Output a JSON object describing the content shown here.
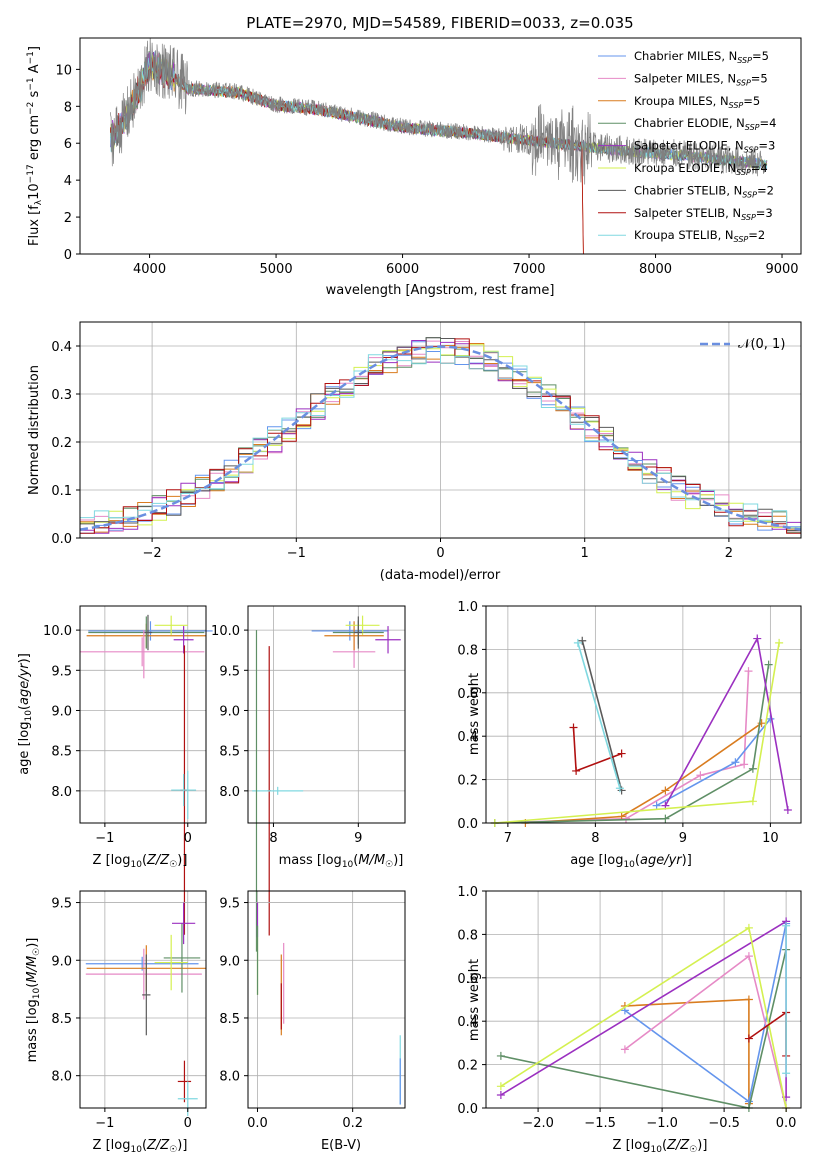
{
  "title": "PLATE=2970, MJD=54589, FIBERID=0033, z=0.035",
  "models": [
    {
      "name": "Chabrier MILES",
      "n": "5",
      "color": "#6495ed"
    },
    {
      "name": "Salpeter MILES",
      "n": "5",
      "color": "#e68ac6"
    },
    {
      "name": "Kroupa MILES",
      "n": "5",
      "color": "#d97c1f"
    },
    {
      "name": "Chabrier ELODIE",
      "n": "4",
      "color": "#5f8f66"
    },
    {
      "name": "Salpeter ELODIE",
      "n": "3",
      "color": "#9b30c0"
    },
    {
      "name": "Kroupa ELODIE",
      "n": "4",
      "color": "#d4f050"
    },
    {
      "name": "Chabrier STELIB",
      "n": "2",
      "color": "#5a5a5a"
    },
    {
      "name": "Salpeter STELIB",
      "n": "3",
      "color": "#b01010"
    },
    {
      "name": "Kroupa STELIB",
      "n": "2",
      "color": "#80d8e0"
    }
  ],
  "legend_prefix": "N",
  "legend_sub": "SSP",
  "chart_data": [
    {
      "id": "spectrum",
      "type": "line",
      "xlabel": "wavelength [Angstrom, rest frame]",
      "ylabel": "Flux [f_λ 10^-17 erg cm^-2 s^-1 A^-1]",
      "xlim": [
        3450,
        9150
      ],
      "ylim": [
        0,
        11.7
      ],
      "xticks": [
        "4000",
        "5000",
        "6000",
        "7000",
        "8000",
        "9000"
      ],
      "yticks": [
        "0",
        "2",
        "4",
        "6",
        "8",
        "10"
      ],
      "data_color": "#808080",
      "spectrum_anchor_x": [
        3700,
        3800,
        3900,
        4000,
        4100,
        4200,
        4300,
        4500,
        4700,
        5000,
        5300,
        5600,
        6000,
        6500,
        7000,
        7400,
        7800,
        8200,
        8600,
        8850
      ],
      "spectrum_anchor_y": [
        6.3,
        7.2,
        8.6,
        10.3,
        10.0,
        9.6,
        9.0,
        8.9,
        8.8,
        8.1,
        7.9,
        7.5,
        6.9,
        6.6,
        6.2,
        5.9,
        5.6,
        5.4,
        5.1,
        4.9
      ],
      "legend": "top-right",
      "grid": false
    },
    {
      "id": "residuals",
      "type": "bar",
      "xlabel": "(data-model)/error",
      "ylabel": "Normed distribution",
      "xlim": [
        -2.5,
        2.5
      ],
      "ylim": [
        0,
        0.45
      ],
      "xticks": [
        "−2",
        "−1",
        "0",
        "1",
        "2"
      ],
      "yticks": [
        "0.0",
        "0.1",
        "0.2",
        "0.3",
        "0.4"
      ],
      "curve_label": "𝒩(0, 1)",
      "curve_color": "#6a8fe0",
      "legend": "top-right",
      "grid": true
    },
    {
      "id": "age-vs-Z",
      "type": "scatter",
      "xlabel": "Z [log10(Z/Z☉)]",
      "ylabel": "age  [log10(age/yr)]",
      "xlim": [
        -1.3,
        0.22
      ],
      "ylim": [
        7.6,
        10.3
      ],
      "xticks": [
        "−1",
        "0"
      ],
      "yticks": [
        "8.0",
        "8.5",
        "9.0",
        "9.5",
        "10.0"
      ],
      "grid": true
    },
    {
      "id": "age-vs-mass",
      "type": "scatter",
      "xlabel": "mass [log10(M/M☉)]",
      "ylabel": "",
      "xlim": [
        7.7,
        9.55
      ],
      "ylim": [
        7.6,
        10.3
      ],
      "xticks": [
        "8",
        "9"
      ],
      "yticks": [
        "8.0",
        "8.5",
        "9.0",
        "9.5",
        "10.0"
      ],
      "grid": true
    },
    {
      "id": "weight-vs-age",
      "type": "line",
      "xlabel": "age  [log10(age/yr)]",
      "ylabel": "mass weight",
      "xlim": [
        6.75,
        10.35
      ],
      "ylim": [
        0,
        1
      ],
      "xticks": [
        "7",
        "8",
        "9",
        "10"
      ],
      "yticks": [
        "0.0",
        "0.2",
        "0.4",
        "0.6",
        "0.8",
        "1.0"
      ],
      "grid": true
    },
    {
      "id": "mass-vs-Z",
      "type": "scatter",
      "xlabel": "Z [log10(Z/Z☉)]",
      "ylabel": "mass [log10(M/M☉)]",
      "xlim": [
        -1.3,
        0.22
      ],
      "ylim": [
        7.72,
        9.6
      ],
      "xticks": [
        "−1",
        "0"
      ],
      "yticks": [
        "8.0",
        "8.5",
        "9.0",
        "9.5"
      ],
      "grid": true
    },
    {
      "id": "mass-vs-ebv",
      "type": "scatter",
      "xlabel": "E(B-V)",
      "ylabel": "",
      "xlim": [
        -0.02,
        0.31
      ],
      "ylim": [
        7.72,
        9.6
      ],
      "xticks": [
        "0.0",
        "0.2"
      ],
      "yticks": [
        "8.0",
        "8.5",
        "9.0",
        "9.5"
      ],
      "grid": true
    },
    {
      "id": "weight-vs-Z",
      "type": "line",
      "xlabel": "Z [log10(Z/Z☉)]",
      "ylabel": "mass weight",
      "xlim": [
        -2.42,
        0.12
      ],
      "ylim": [
        0,
        1
      ],
      "xticks": [
        "−2.0",
        "−1.5",
        "−1.0",
        "−0.5",
        "0.0"
      ],
      "yticks": [
        "0.0",
        "0.2",
        "0.4",
        "0.6",
        "0.8",
        "1.0"
      ],
      "grid": true
    }
  ]
}
